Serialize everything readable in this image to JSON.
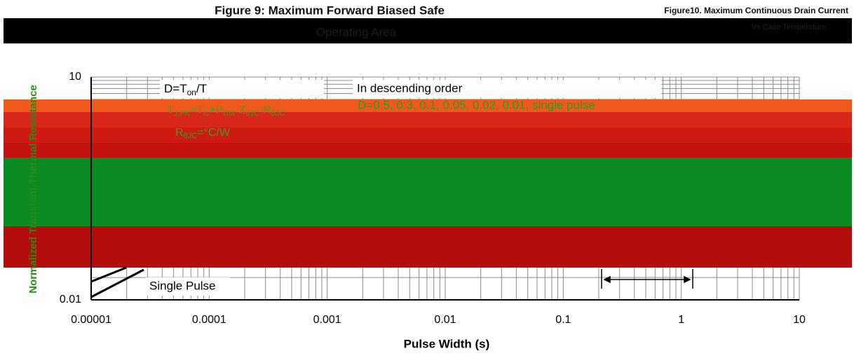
{
  "chart_data": {
    "type": "line",
    "title": "Figure 9: Maximum Forward Biased Safe",
    "subtitle": "Operating Area",
    "side_title": "Figure10. Maximum Continuous Drain Current",
    "side_subtitle": "Vs Case Temperature",
    "ylabel": "Normalized Transient Thermal Resistance",
    "xlabel": "Pulse Width (s)",
    "log_x": true,
    "log_y": true,
    "grid": true,
    "xlim": [
      1e-05,
      10
    ],
    "ylim": [
      0.01,
      10
    ],
    "xticks": [
      1e-05,
      0.0001,
      0.001,
      0.01,
      0.1,
      1,
      10
    ],
    "yticks": [
      0.01,
      10
    ],
    "duty_formula": [
      "D=T",
      "on",
      "/T"
    ],
    "tj_formula": [
      "T",
      "J,PK",
      "=T",
      "C",
      "+P",
      "DM",
      "·Z",
      "θJC",
      "·R",
      "θJC"
    ],
    "rth_formula": [
      "R",
      "θJC",
      "=°C/W"
    ],
    "order_note": "In descending order",
    "duty_list": "D=0.5, 0.3, 0.1, 0.05, 0.02, 0.01, single pulse",
    "single_pulse_label": "Single Pulse"
  }
}
